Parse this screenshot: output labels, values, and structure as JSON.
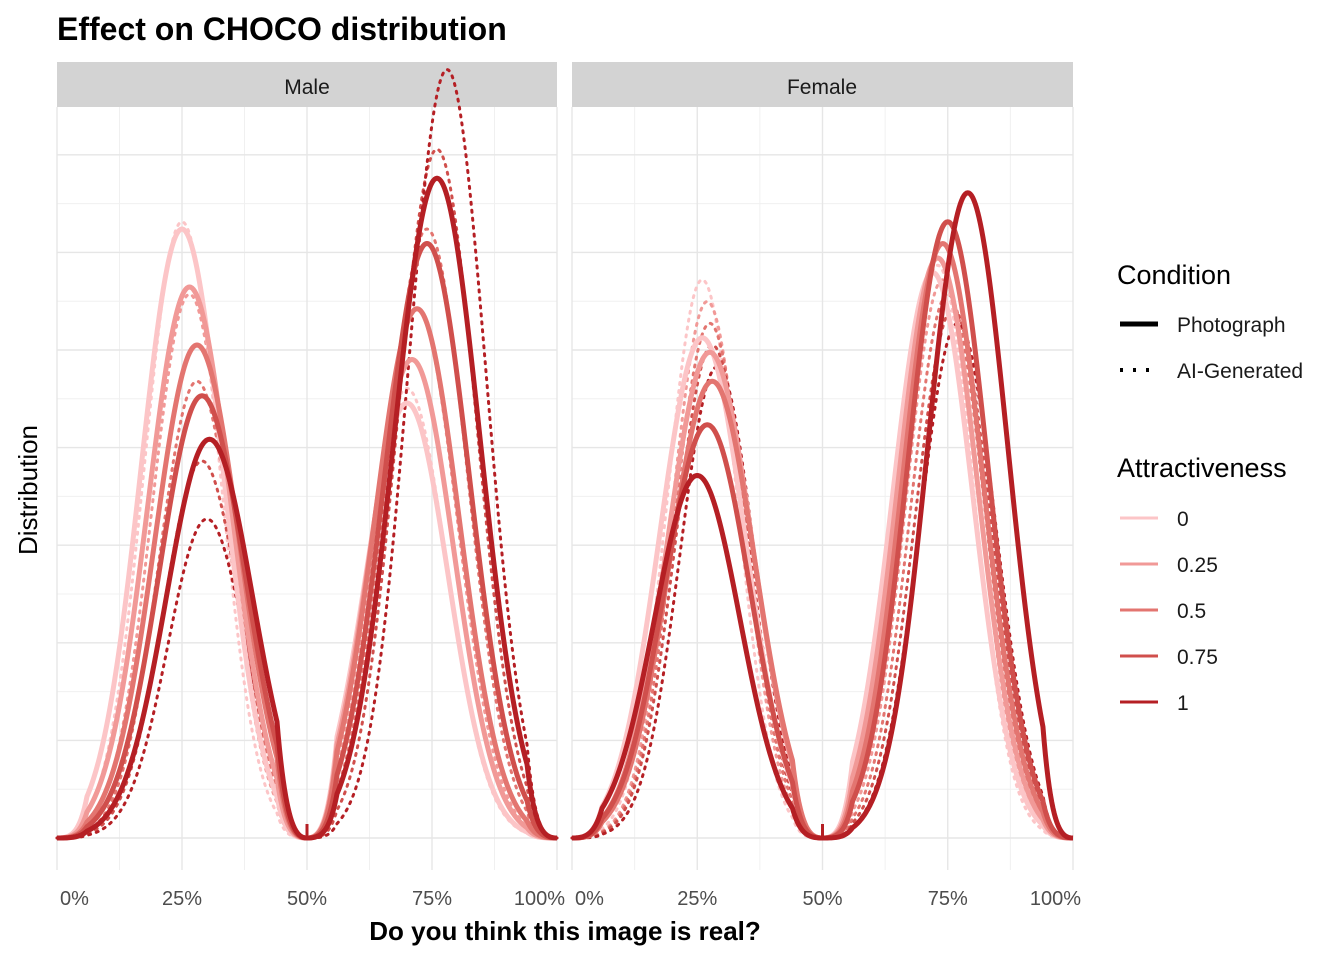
{
  "chart_data": {
    "type": "line",
    "title": "Effect on CHOCO distribution",
    "xlabel": "Do you think this image is real?",
    "ylabel": "Distribution",
    "x_ticks": [
      "0%",
      "25%",
      "50%",
      "75%",
      "100%"
    ],
    "xlim": [
      0,
      1
    ],
    "ylim": [
      0,
      1.07
    ],
    "grid": true,
    "legend_position": "right",
    "facets": [
      "Male",
      "Female"
    ],
    "condition_legend": {
      "title": "Condition",
      "items": [
        {
          "label": "Photograph",
          "linetype": "solid"
        },
        {
          "label": "AI-Generated",
          "linetype": "dotted"
        }
      ]
    },
    "attractiveness_legend": {
      "title": "Attractiveness",
      "items": [
        {
          "label": "0",
          "color": "#fcc5c7"
        },
        {
          "label": "0.25",
          "color": "#f19997"
        },
        {
          "label": "0.5",
          "color": "#e37570"
        },
        {
          "label": "0.75",
          "color": "#d04f4c"
        },
        {
          "label": "1",
          "color": "#b51f24"
        }
      ]
    },
    "series": [
      {
        "facet": "Male",
        "condition": "Photograph",
        "attractiveness": "0",
        "color": "#fcc5c7",
        "left_peak": [
          0.25,
          0.84
        ],
        "left_sd": 0.082,
        "right_peak": [
          0.7,
          0.6
        ],
        "right_sd": 0.082
      },
      {
        "facet": "Male",
        "condition": "Photograph",
        "attractiveness": "0.25",
        "color": "#f19997",
        "left_peak": [
          0.265,
          0.76
        ],
        "left_sd": 0.083,
        "right_peak": [
          0.71,
          0.66
        ],
        "right_sd": 0.083
      },
      {
        "facet": "Male",
        "condition": "Photograph",
        "attractiveness": "0.5",
        "color": "#e37570",
        "left_peak": [
          0.28,
          0.68
        ],
        "left_sd": 0.084,
        "right_peak": [
          0.72,
          0.73
        ],
        "right_sd": 0.084
      },
      {
        "facet": "Male",
        "condition": "Photograph",
        "attractiveness": "0.75",
        "color": "#d04f4c",
        "left_peak": [
          0.29,
          0.61
        ],
        "left_sd": 0.085,
        "right_peak": [
          0.74,
          0.82
        ],
        "right_sd": 0.085
      },
      {
        "facet": "Male",
        "condition": "Photograph",
        "attractiveness": "1",
        "color": "#b51f24",
        "left_peak": [
          0.305,
          0.55
        ],
        "left_sd": 0.086,
        "right_peak": [
          0.76,
          0.91
        ],
        "right_sd": 0.086
      },
      {
        "facet": "Male",
        "condition": "AI-Generated",
        "attractiveness": "0",
        "color": "#fcc5c7",
        "left_peak": [
          0.25,
          0.85
        ],
        "left_sd": 0.075,
        "right_peak": [
          0.7,
          0.62
        ],
        "right_sd": 0.08
      },
      {
        "facet": "Male",
        "condition": "AI-Generated",
        "attractiveness": "0.25",
        "color": "#f19997",
        "left_peak": [
          0.265,
          0.75
        ],
        "left_sd": 0.075,
        "right_peak": [
          0.72,
          0.73
        ],
        "right_sd": 0.08
      },
      {
        "facet": "Male",
        "condition": "AI-Generated",
        "attractiveness": "0.5",
        "color": "#e37570",
        "left_peak": [
          0.28,
          0.63
        ],
        "left_sd": 0.076,
        "right_peak": [
          0.74,
          0.84
        ],
        "right_sd": 0.08
      },
      {
        "facet": "Male",
        "condition": "AI-Generated",
        "attractiveness": "0.75",
        "color": "#d04f4c",
        "left_peak": [
          0.29,
          0.52
        ],
        "left_sd": 0.077,
        "right_peak": [
          0.76,
          0.95
        ],
        "right_sd": 0.079
      },
      {
        "facet": "Male",
        "condition": "AI-Generated",
        "attractiveness": "1",
        "color": "#b51f24",
        "left_peak": [
          0.3,
          0.44
        ],
        "left_sd": 0.078,
        "right_peak": [
          0.78,
          1.06
        ],
        "right_sd": 0.078
      },
      {
        "facet": "Female",
        "condition": "Photograph",
        "attractiveness": "0",
        "color": "#fcc5c7",
        "left_peak": [
          0.26,
          0.69
        ],
        "left_sd": 0.085,
        "right_peak": [
          0.72,
          0.78
        ],
        "right_sd": 0.08
      },
      {
        "facet": "Female",
        "condition": "Photograph",
        "attractiveness": "0.25",
        "color": "#f19997",
        "left_peak": [
          0.275,
          0.67
        ],
        "left_sd": 0.085,
        "right_peak": [
          0.73,
          0.8
        ],
        "right_sd": 0.08
      },
      {
        "facet": "Female",
        "condition": "Photograph",
        "attractiveness": "0.5",
        "color": "#e37570",
        "left_peak": [
          0.28,
          0.63
        ],
        "left_sd": 0.085,
        "right_peak": [
          0.74,
          0.82
        ],
        "right_sd": 0.08
      },
      {
        "facet": "Female",
        "condition": "Photograph",
        "attractiveness": "0.75",
        "color": "#d04f4c",
        "left_peak": [
          0.27,
          0.57
        ],
        "left_sd": 0.085,
        "right_peak": [
          0.75,
          0.85
        ],
        "right_sd": 0.08
      },
      {
        "facet": "Female",
        "condition": "Photograph",
        "attractiveness": "1",
        "color": "#b51f24",
        "left_peak": [
          0.25,
          0.5
        ],
        "left_sd": 0.085,
        "right_peak": [
          0.79,
          0.89
        ],
        "right_sd": 0.08
      },
      {
        "facet": "Female",
        "condition": "AI-Generated",
        "attractiveness": "0",
        "color": "#fcc5c7",
        "left_peak": [
          0.26,
          0.77
        ],
        "left_sd": 0.07,
        "right_peak": [
          0.73,
          0.79
        ],
        "right_sd": 0.072
      },
      {
        "facet": "Female",
        "condition": "AI-Generated",
        "attractiveness": "0.25",
        "color": "#f19997",
        "left_peak": [
          0.27,
          0.74
        ],
        "left_sd": 0.071,
        "right_peak": [
          0.74,
          0.77
        ],
        "right_sd": 0.073
      },
      {
        "facet": "Female",
        "condition": "AI-Generated",
        "attractiveness": "0.5",
        "color": "#e37570",
        "left_peak": [
          0.275,
          0.71
        ],
        "left_sd": 0.072,
        "right_peak": [
          0.75,
          0.75
        ],
        "right_sd": 0.074
      },
      {
        "facet": "Female",
        "condition": "AI-Generated",
        "attractiveness": "0.75",
        "color": "#d04f4c",
        "left_peak": [
          0.28,
          0.68
        ],
        "left_sd": 0.073,
        "right_peak": [
          0.76,
          0.73
        ],
        "right_sd": 0.075
      },
      {
        "facet": "Female",
        "condition": "AI-Generated",
        "attractiveness": "1",
        "color": "#b51f24",
        "left_peak": [
          0.29,
          0.65
        ],
        "left_sd": 0.074,
        "right_peak": [
          0.77,
          0.71
        ],
        "right_sd": 0.076
      }
    ]
  }
}
